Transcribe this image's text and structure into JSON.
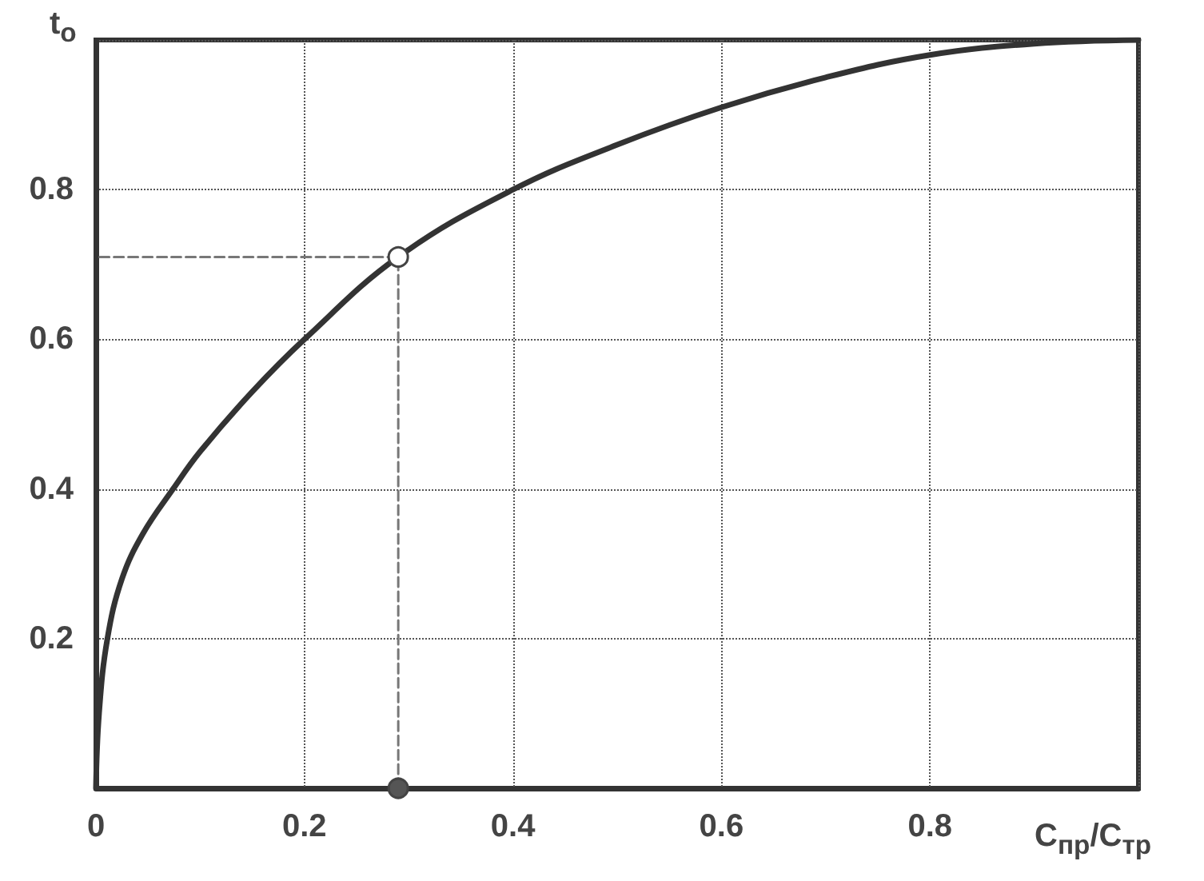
{
  "chart_data": {
    "type": "line",
    "xlabel": "C$_{пр}$/C$_{тр}$",
    "ylabel": "t$_{o}$",
    "xlim": [
      0,
      1
    ],
    "ylim": [
      0,
      1
    ],
    "xticks": [
      0,
      0.2,
      0.4,
      0.6,
      0.8,
      {
        "value": 1,
        "label": null
      }
    ],
    "yticks": [
      {
        "value": 0,
        "label": null
      },
      0.2,
      0.4,
      0.6,
      0.8,
      {
        "value": 1,
        "label": null
      }
    ],
    "grid": true,
    "series": [
      {
        "color": "#333333",
        "marker": "none",
        "line_style": "solid",
        "x": [
          0,
          0.003,
          0.011,
          0.025,
          0.045,
          0.074,
          0.1,
          0.15,
          0.2,
          0.29,
          0.4,
          0.5,
          0.6,
          0.7,
          0.8,
          0.9,
          1
        ],
        "values": [
          0,
          0.1,
          0.2,
          0.28,
          0.34,
          0.4,
          0.45,
          0.53,
          0.6,
          0.71,
          0.8,
          0.86,
          0.91,
          0.95,
          0.98,
          0.995,
          1
        ]
      },
      {
        "type": "line",
        "color": "#777777",
        "marker": "none",
        "line_style": "dashed",
        "x": [
          0.29,
          0.29,
          0
        ],
        "values": [
          0,
          0.71,
          0.71
        ]
      },
      {
        "type": "scatter",
        "color": "#ffffff",
        "marker": "circle",
        "x": [
          0.29
        ],
        "values": [
          0.71
        ]
      },
      {
        "type": "scatter",
        "color": "#555555",
        "marker": "circle",
        "x": [
          0.29
        ],
        "values": [
          0
        ]
      }
    ]
  }
}
